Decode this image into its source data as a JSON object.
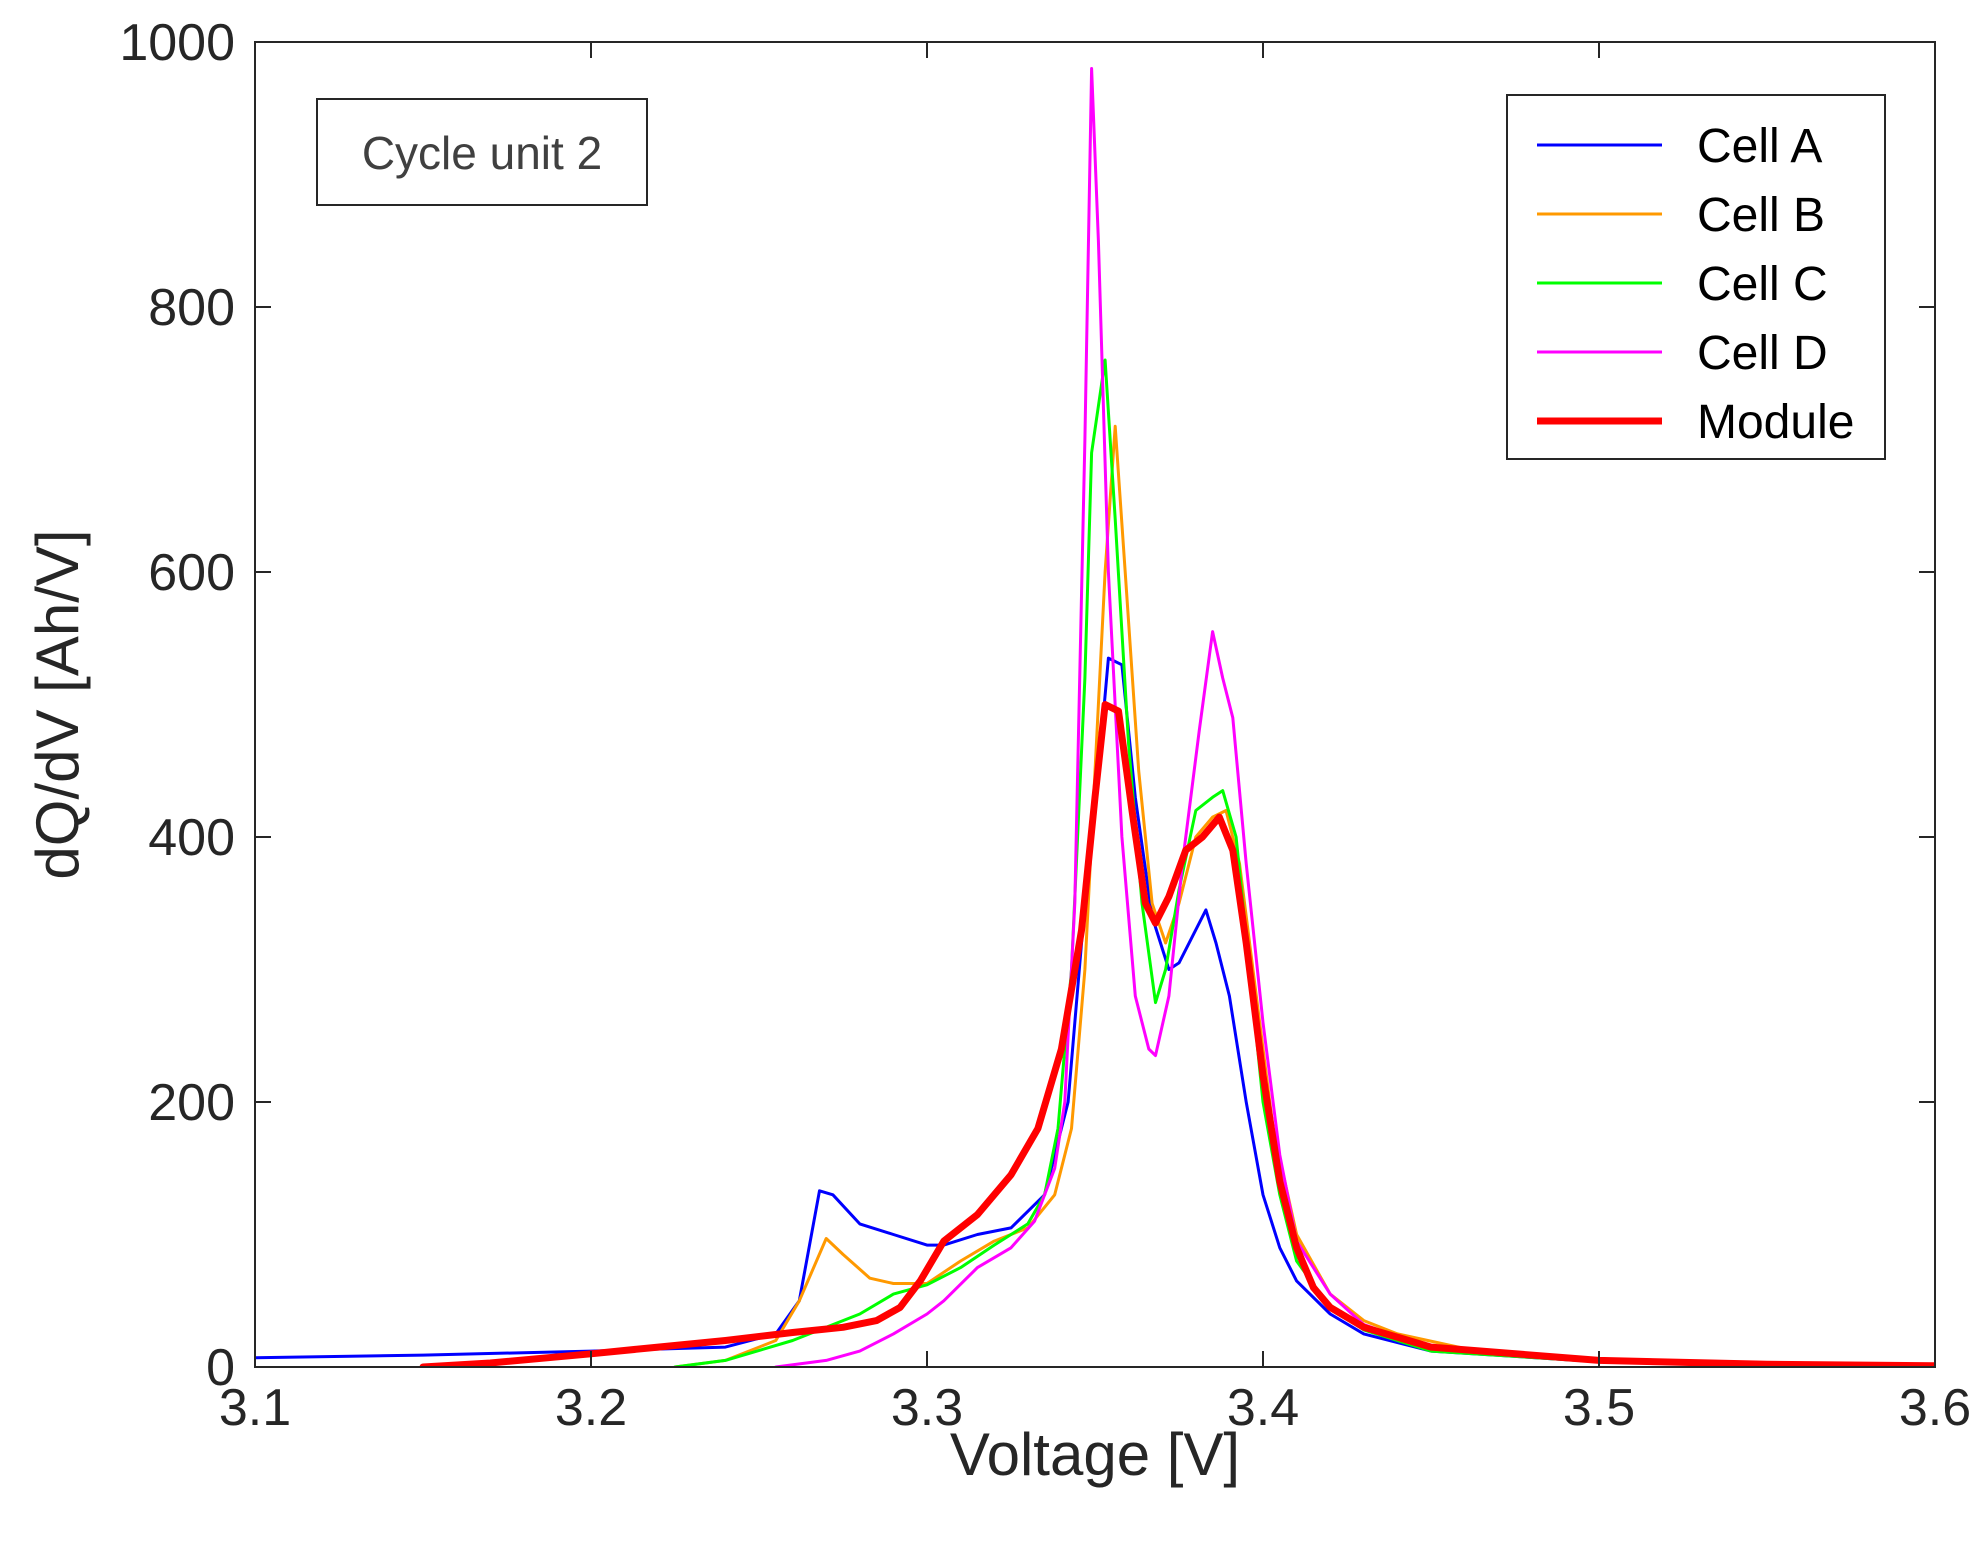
{
  "chart_data": {
    "type": "line",
    "title": "",
    "xlabel": "Voltage [V]",
    "ylabel": "dQ/dV [Ah/V]",
    "xlim": [
      3.1,
      3.6
    ],
    "ylim": [
      0,
      1000
    ],
    "xticks": [
      3.1,
      3.2,
      3.3,
      3.4,
      3.5,
      3.6
    ],
    "xtick_labels": [
      "3.1",
      "3.2",
      "3.3",
      "3.4",
      "3.5",
      "3.6"
    ],
    "yticks": [
      0,
      200,
      400,
      600,
      800,
      1000
    ],
    "ytick_labels": [
      "0",
      "200",
      "400",
      "600",
      "800",
      "1000"
    ],
    "grid": false,
    "legend_position": "top-right",
    "annotation": "Cycle unit 2",
    "series": [
      {
        "name": "Cell A",
        "color": "#0000ff",
        "width": 3,
        "points": [
          [
            3.1,
            7
          ],
          [
            3.15,
            9
          ],
          [
            3.2,
            12
          ],
          [
            3.24,
            15
          ],
          [
            3.255,
            25
          ],
          [
            3.262,
            50
          ],
          [
            3.268,
            133
          ],
          [
            3.272,
            130
          ],
          [
            3.28,
            108
          ],
          [
            3.29,
            100
          ],
          [
            3.3,
            92
          ],
          [
            3.305,
            92
          ],
          [
            3.315,
            100
          ],
          [
            3.325,
            105
          ],
          [
            3.335,
            130
          ],
          [
            3.342,
            200
          ],
          [
            3.347,
            350
          ],
          [
            3.351,
            450
          ],
          [
            3.354,
            535
          ],
          [
            3.358,
            530
          ],
          [
            3.362,
            430
          ],
          [
            3.367,
            340
          ],
          [
            3.372,
            300
          ],
          [
            3.375,
            305
          ],
          [
            3.38,
            330
          ],
          [
            3.383,
            345
          ],
          [
            3.386,
            320
          ],
          [
            3.39,
            280
          ],
          [
            3.395,
            200
          ],
          [
            3.4,
            130
          ],
          [
            3.405,
            90
          ],
          [
            3.41,
            65
          ],
          [
            3.42,
            40
          ],
          [
            3.43,
            25
          ],
          [
            3.45,
            12
          ],
          [
            3.5,
            4
          ],
          [
            3.55,
            2
          ],
          [
            3.6,
            1
          ]
        ]
      },
      {
        "name": "Cell B",
        "color": "#ff9900",
        "width": 3,
        "points": [
          [
            3.225,
            0
          ],
          [
            3.24,
            5
          ],
          [
            3.255,
            20
          ],
          [
            3.262,
            50
          ],
          [
            3.27,
            97
          ],
          [
            3.275,
            85
          ],
          [
            3.283,
            67
          ],
          [
            3.29,
            63
          ],
          [
            3.3,
            63
          ],
          [
            3.31,
            80
          ],
          [
            3.32,
            95
          ],
          [
            3.33,
            105
          ],
          [
            3.338,
            130
          ],
          [
            3.343,
            180
          ],
          [
            3.347,
            300
          ],
          [
            3.351,
            500
          ],
          [
            3.353,
            600
          ],
          [
            3.356,
            710
          ],
          [
            3.359,
            600
          ],
          [
            3.363,
            450
          ],
          [
            3.367,
            350
          ],
          [
            3.371,
            320
          ],
          [
            3.375,
            350
          ],
          [
            3.38,
            400
          ],
          [
            3.385,
            415
          ],
          [
            3.389,
            420
          ],
          [
            3.393,
            380
          ],
          [
            3.398,
            280
          ],
          [
            3.403,
            180
          ],
          [
            3.41,
            100
          ],
          [
            3.42,
            55
          ],
          [
            3.43,
            35
          ],
          [
            3.44,
            25
          ],
          [
            3.46,
            14
          ],
          [
            3.5,
            5
          ],
          [
            3.55,
            2
          ],
          [
            3.6,
            1
          ]
        ]
      },
      {
        "name": "Cell C",
        "color": "#00ff00",
        "width": 3,
        "points": [
          [
            3.225,
            0
          ],
          [
            3.24,
            5
          ],
          [
            3.26,
            20
          ],
          [
            3.28,
            40
          ],
          [
            3.29,
            55
          ],
          [
            3.3,
            62
          ],
          [
            3.31,
            75
          ],
          [
            3.32,
            92
          ],
          [
            3.33,
            108
          ],
          [
            3.335,
            130
          ],
          [
            3.339,
            180
          ],
          [
            3.343,
            300
          ],
          [
            3.347,
            520
          ],
          [
            3.349,
            690
          ],
          [
            3.353,
            760
          ],
          [
            3.356,
            640
          ],
          [
            3.36,
            470
          ],
          [
            3.364,
            350
          ],
          [
            3.368,
            275
          ],
          [
            3.371,
            300
          ],
          [
            3.375,
            360
          ],
          [
            3.38,
            420
          ],
          [
            3.385,
            430
          ],
          [
            3.388,
            435
          ],
          [
            3.392,
            400
          ],
          [
            3.396,
            300
          ],
          [
            3.4,
            200
          ],
          [
            3.405,
            130
          ],
          [
            3.41,
            80
          ],
          [
            3.42,
            45
          ],
          [
            3.43,
            28
          ],
          [
            3.45,
            12
          ],
          [
            3.5,
            4
          ],
          [
            3.55,
            2
          ],
          [
            3.6,
            1
          ]
        ]
      },
      {
        "name": "Cell D",
        "color": "#ff00ff",
        "width": 3,
        "points": [
          [
            3.255,
            0
          ],
          [
            3.27,
            5
          ],
          [
            3.28,
            12
          ],
          [
            3.29,
            25
          ],
          [
            3.3,
            40
          ],
          [
            3.305,
            50
          ],
          [
            3.315,
            75
          ],
          [
            3.325,
            90
          ],
          [
            3.332,
            110
          ],
          [
            3.338,
            150
          ],
          [
            3.341,
            200
          ],
          [
            3.344,
            350
          ],
          [
            3.347,
            700
          ],
          [
            3.349,
            980
          ],
          [
            3.351,
            850
          ],
          [
            3.354,
            600
          ],
          [
            3.358,
            400
          ],
          [
            3.362,
            280
          ],
          [
            3.366,
            240
          ],
          [
            3.368,
            235
          ],
          [
            3.372,
            280
          ],
          [
            3.376,
            380
          ],
          [
            3.381,
            480
          ],
          [
            3.385,
            555
          ],
          [
            3.388,
            520
          ],
          [
            3.391,
            490
          ],
          [
            3.395,
            380
          ],
          [
            3.4,
            260
          ],
          [
            3.405,
            160
          ],
          [
            3.41,
            95
          ],
          [
            3.42,
            55
          ],
          [
            3.43,
            32
          ],
          [
            3.45,
            14
          ],
          [
            3.5,
            4
          ],
          [
            3.55,
            2
          ],
          [
            3.6,
            1
          ]
        ]
      },
      {
        "name": "Module",
        "color": "#ff0000",
        "width": 7,
        "points": [
          [
            3.15,
            0
          ],
          [
            3.17,
            3
          ],
          [
            3.2,
            10
          ],
          [
            3.22,
            15
          ],
          [
            3.24,
            20
          ],
          [
            3.26,
            26
          ],
          [
            3.275,
            30
          ],
          [
            3.285,
            35
          ],
          [
            3.292,
            45
          ],
          [
            3.298,
            65
          ],
          [
            3.305,
            95
          ],
          [
            3.315,
            115
          ],
          [
            3.325,
            145
          ],
          [
            3.333,
            180
          ],
          [
            3.34,
            240
          ],
          [
            3.346,
            330
          ],
          [
            3.35,
            430
          ],
          [
            3.353,
            500
          ],
          [
            3.357,
            495
          ],
          [
            3.361,
            420
          ],
          [
            3.365,
            350
          ],
          [
            3.368,
            335
          ],
          [
            3.372,
            355
          ],
          [
            3.377,
            390
          ],
          [
            3.382,
            400
          ],
          [
            3.387,
            415
          ],
          [
            3.391,
            390
          ],
          [
            3.395,
            320
          ],
          [
            3.4,
            220
          ],
          [
            3.405,
            140
          ],
          [
            3.41,
            90
          ],
          [
            3.415,
            60
          ],
          [
            3.42,
            45
          ],
          [
            3.43,
            30
          ],
          [
            3.45,
            15
          ],
          [
            3.5,
            5
          ],
          [
            3.55,
            2
          ],
          [
            3.6,
            1
          ]
        ]
      }
    ]
  }
}
